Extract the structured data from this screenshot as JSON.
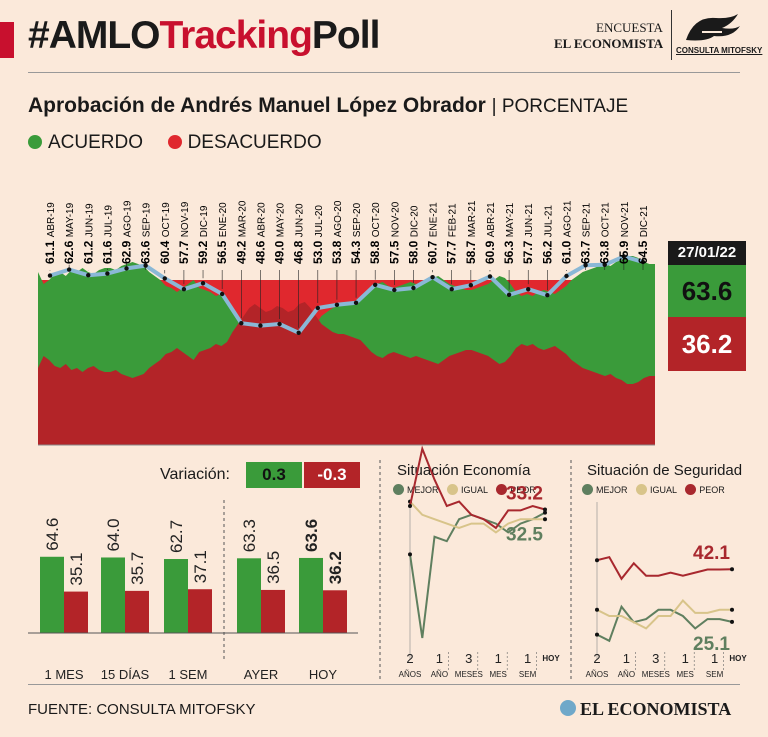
{
  "header": {
    "hashtag_part1": "#AMLO",
    "hashtag_part2": "Tracking",
    "hashtag_part3": "Poll",
    "encuesta": "ENCUESTA",
    "publisher": "EL ECONOMISTA",
    "logo_text": "CONSULTA MITOFSKY"
  },
  "title": {
    "main": "Aprobación de Andrés Manuel López Obrador",
    "suffix": "| PORCENTAJE"
  },
  "legend": {
    "agree_label": "ACUERDO",
    "disagree_label": "DESACUERDO"
  },
  "current": {
    "date": "27/01/22",
    "agree": "63.6",
    "disagree": "36.2"
  },
  "variation": {
    "label": "Variación:",
    "agree": "0.3",
    "disagree": "-0.3"
  },
  "colors": {
    "agree": "#3a9b3a",
    "disagree": "#b32428",
    "line": "#8ab8d6",
    "mejor": "#5f7f5f",
    "igual": "#d8c48a",
    "peor": "#a8282e",
    "background": "#fbe9da"
  },
  "chart_data": [
    {
      "type": "area",
      "title": "Aprobación de Andrés Manuel López Obrador",
      "ylabel": "",
      "series_names": [
        "ACUERDO",
        "DESACUERDO"
      ],
      "monthly_labels": [
        {
          "label": "ABR-19",
          "value": 61.1
        },
        {
          "label": "MAY-19",
          "value": 62.6
        },
        {
          "label": "JUN-19",
          "value": 61.2
        },
        {
          "label": "JUL-19",
          "value": 61.6
        },
        {
          "label": "AGO-19",
          "value": 62.9
        },
        {
          "label": "SEP-19",
          "value": 63.6
        },
        {
          "label": "OCT-19",
          "value": 60.4
        },
        {
          "label": "NOV-19",
          "value": 57.7
        },
        {
          "label": "DIC-19",
          "value": 59.2
        },
        {
          "label": "ENE-20",
          "value": 56.5
        },
        {
          "label": "MAR-20",
          "value": 49.2
        },
        {
          "label": "ABR-20",
          "value": 48.6
        },
        {
          "label": "MAY-20",
          "value": 49.0
        },
        {
          "label": "JUN-20",
          "value": 46.8
        },
        {
          "label": "JUL-20",
          "value": 53.0
        },
        {
          "label": "AGO-20",
          "value": 53.8
        },
        {
          "label": "SEP-20",
          "value": 54.3
        },
        {
          "label": "OCT-20",
          "value": 58.8
        },
        {
          "label": "NOV-20",
          "value": 57.5
        },
        {
          "label": "DIC-20",
          "value": 58.0
        },
        {
          "label": "ENE-21",
          "value": 60.7
        },
        {
          "label": "FEB-21",
          "value": 57.7
        },
        {
          "label": "MAR-21",
          "value": 58.7
        },
        {
          "label": "ABR-21",
          "value": 60.9
        },
        {
          "label": "MAY-21",
          "value": 56.3
        },
        {
          "label": "JUN-21",
          "value": 57.7
        },
        {
          "label": "JUL-21",
          "value": 56.2
        },
        {
          "label": "AGO-21",
          "value": 61.0
        },
        {
          "label": "SEP-21",
          "value": 63.7
        },
        {
          "label": "OCT-21",
          "value": 63.8
        },
        {
          "label": "NOV-21",
          "value": 65.9
        },
        {
          "label": "DIC-21",
          "value": 64.5
        }
      ],
      "daily_agree": [
        62,
        59,
        60,
        61.5,
        62,
        61,
        62.5,
        62,
        63,
        62,
        61.5,
        62.5,
        63,
        63,
        62.5,
        63.5,
        64,
        64.5,
        64,
        63.5,
        62,
        61,
        60,
        58.5,
        58,
        57,
        58,
        59,
        60,
        58,
        57.5,
        57,
        56,
        56.5,
        55.5,
        53,
        51,
        49,
        47,
        46,
        47,
        48,
        47.5,
        46.5,
        47,
        48,
        47.5,
        46,
        45.5,
        47,
        49,
        51,
        52,
        53,
        53.5,
        53.5,
        54,
        54.5,
        55,
        56.5,
        58,
        59,
        59.5,
        58.5,
        58,
        58.5,
        59,
        59.5,
        59,
        59.5,
        60,
        60.5,
        61,
        60,
        59,
        58.5,
        58,
        57.5,
        57.5,
        58,
        58.5,
        59,
        60,
        61,
        60.5,
        59,
        57,
        56,
        56.5,
        56,
        57,
        57.5,
        57,
        56.5,
        57.5,
        58.5,
        60,
        61,
        62,
        62.5,
        63,
        63.5,
        64,
        63.5,
        64.5,
        65,
        66,
        66,
        65.5,
        64.5,
        64,
        64
      ]
    },
    {
      "type": "bar",
      "categories": [
        "1 MES",
        "15 DÍAS",
        "1 SEM",
        "AYER",
        "HOY"
      ],
      "series": [
        {
          "name": "ACUERDO",
          "values": [
            64.6,
            64.0,
            62.7,
            63.3,
            63.6
          ]
        },
        {
          "name": "DESACUERDO",
          "values": [
            35.1,
            35.7,
            37.1,
            36.5,
            36.2
          ]
        }
      ],
      "ylim": [
        0,
        100
      ]
    },
    {
      "type": "line",
      "title": "Situación Economía",
      "legend": [
        "MEJOR",
        "IGUAL",
        "PEOR"
      ],
      "x_ticks": [
        {
          "n": "2",
          "unit": "AÑOS"
        },
        {
          "n": "1",
          "unit": "AÑO"
        },
        {
          "n": "3",
          "unit": "MESES"
        },
        {
          "n": "1",
          "unit": "MES"
        },
        {
          "n": "1",
          "unit": "SEM"
        },
        {
          "n": "",
          "unit": "HOY"
        }
      ],
      "series": [
        {
          "name": "MEJOR",
          "values": [
            23,
            4,
            27,
            26,
            31,
            32,
            31,
            30,
            28,
            30,
            31,
            32.5
          ]
        },
        {
          "name": "IGUAL",
          "values": [
            35,
            32,
            31,
            30,
            29,
            30,
            30,
            28,
            30,
            31,
            31,
            31
          ]
        },
        {
          "name": "PEOR",
          "values": [
            34,
            47,
            40,
            34,
            35,
            32,
            31,
            29,
            33,
            33,
            34,
            33.2
          ]
        }
      ],
      "end_labels": {
        "PEOR": "33.2",
        "MEJOR": "32.5"
      }
    },
    {
      "type": "line",
      "title": "Situación de Seguridad",
      "legend": [
        "MEJOR",
        "IGUAL",
        "PEOR"
      ],
      "x_ticks": [
        {
          "n": "2",
          "unit": "AÑOS"
        },
        {
          "n": "1",
          "unit": "AÑO"
        },
        {
          "n": "3",
          "unit": "MESES"
        },
        {
          "n": "1",
          "unit": "MES"
        },
        {
          "n": "1",
          "unit": "SEM"
        },
        {
          "n": "",
          "unit": "HOY"
        }
      ],
      "series": [
        {
          "name": "MEJOR",
          "values": [
            21,
            19,
            30,
            25,
            26,
            29,
            29,
            27,
            23,
            26,
            26,
            25.1
          ]
        },
        {
          "name": "IGUAL",
          "values": [
            29,
            27,
            27,
            25,
            23,
            27,
            27,
            32,
            28,
            28,
            29,
            29
          ]
        },
        {
          "name": "PEOR",
          "values": [
            45,
            46,
            39,
            44,
            40,
            40,
            41,
            40,
            41,
            42,
            42,
            42.1
          ]
        }
      ],
      "end_labels": {
        "PEOR": "42.1",
        "MEJOR": "25.1"
      }
    }
  ],
  "footer": {
    "source": "FUENTE: CONSULTA MITOFSKY",
    "publisher": "EL ECONOMISTA"
  }
}
